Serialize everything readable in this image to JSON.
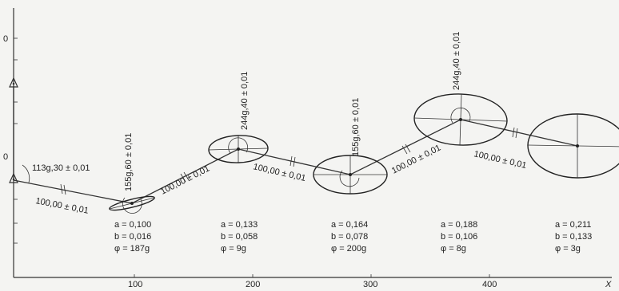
{
  "axis": {
    "x_label": "X",
    "x_ticks": [
      "100",
      "200",
      "300",
      "400"
    ],
    "y_ticks": [
      "0",
      "0"
    ]
  },
  "angles": [
    {
      "text": "113g,30 ± 0,01"
    },
    {
      "text": "155g,60 ± 0,01"
    },
    {
      "text": "244g,40 ± 0,01"
    },
    {
      "text": "155g,60 ± 0,01"
    },
    {
      "text": "244g,40 ± 0,01"
    }
  ],
  "distances": [
    "100,00 ± 0,01",
    "100,00 ± 0,01",
    "100,00 ± 0,01",
    "100,00 ± 0,01",
    "100,00 ± 0,01"
  ],
  "ellipses": [
    {
      "a": "a = 0,100",
      "b": "b = 0,016",
      "phi": "φ = 187g"
    },
    {
      "a": "a = 0,133",
      "b": "b = 0,058",
      "phi": "φ = 9g"
    },
    {
      "a": "a = 0,164",
      "b": "b = 0,078",
      "phi": "φ = 200g"
    },
    {
      "a": "a = 0,188",
      "b": "b = 0,106",
      "phi": "φ = 8g"
    },
    {
      "a": "a = 0,211",
      "b": "b = 0,133",
      "phi": "φ = 3g"
    }
  ]
}
